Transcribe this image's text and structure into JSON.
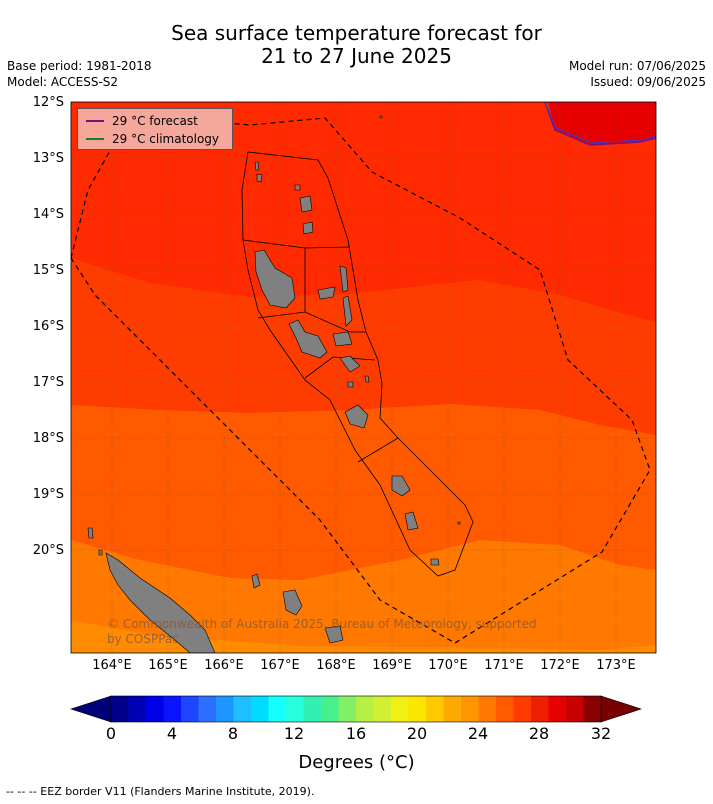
{
  "header": {
    "title_line1": "Sea surface temperature forecast for",
    "title_line2": "21 to 27 June 2025",
    "base_period": "Base period: 1981-2018",
    "model": "Model: ACCESS-S2",
    "model_run": "Model run: 07/06/2025",
    "issued": "Issued: 09/06/2025"
  },
  "legend": {
    "forecast_label": "29 °C  forecast",
    "forecast_color": "#7b0f7b",
    "climatology_label": "29 °C  climatology",
    "climatology_color": "#1a7f1a"
  },
  "map": {
    "lat_labels": [
      "12°S",
      "13°S",
      "14°S",
      "15°S",
      "16°S",
      "17°S",
      "18°S",
      "19°S",
      "20°S"
    ],
    "lon_labels": [
      "164°E",
      "165°E",
      "166°E",
      "167°E",
      "168°E",
      "169°E",
      "170°E",
      "171°E",
      "172°E",
      "173°E"
    ],
    "copyright": "© Commonwealth of Australia 2025, Bureau of Meteorology, supported by COSPPac",
    "land_color": "#808080",
    "eez_style": "dashed"
  },
  "colorbar": {
    "tick_labels": [
      "0",
      "4",
      "8",
      "12",
      "16",
      "20",
      "24",
      "28",
      "32"
    ],
    "colors": [
      "#00008b",
      "#0000b4",
      "#0000e6",
      "#0a14ff",
      "#1e46ff",
      "#2c6eff",
      "#1e96ff",
      "#1ebeff",
      "#00dcff",
      "#14ffff",
      "#28ffdc",
      "#32f0b4",
      "#46f08c",
      "#82f064",
      "#b4f046",
      "#d2f032",
      "#f0f014",
      "#fae600",
      "#ffc800",
      "#ffaa00",
      "#ff9600",
      "#ff7800",
      "#ff5a00",
      "#ff3c00",
      "#f01e00",
      "#e60000",
      "#c80000",
      "#8b0000"
    ],
    "under_color": "#000078",
    "over_color": "#780000",
    "label": "Degrees (°C)"
  },
  "footer": {
    "eez_note": "--  --  -- EEZ border V11 (Flanders Marine Institute, 2019)."
  }
}
